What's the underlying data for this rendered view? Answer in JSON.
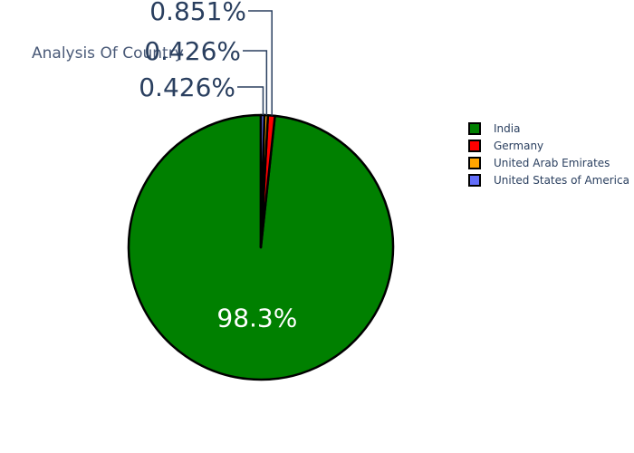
{
  "chart_data": {
    "type": "pie",
    "title": "Analysis Of Country",
    "legend_position": "right",
    "slices": [
      {
        "label": "India",
        "percent": 98.3,
        "text": "98.3%",
        "color": "#008000",
        "text_position": "inside"
      },
      {
        "label": "Germany",
        "percent": 0.851,
        "text": "0.851%",
        "color": "#ff0000",
        "text_position": "outside"
      },
      {
        "label": "United Arab Emirates",
        "percent": 0.426,
        "text": "0.426%",
        "color": "#ffa500",
        "text_position": "outside"
      },
      {
        "label": "United States of America",
        "percent": 0.426,
        "text": "0.426%",
        "color": "#636efa",
        "text_position": "outside"
      }
    ]
  }
}
